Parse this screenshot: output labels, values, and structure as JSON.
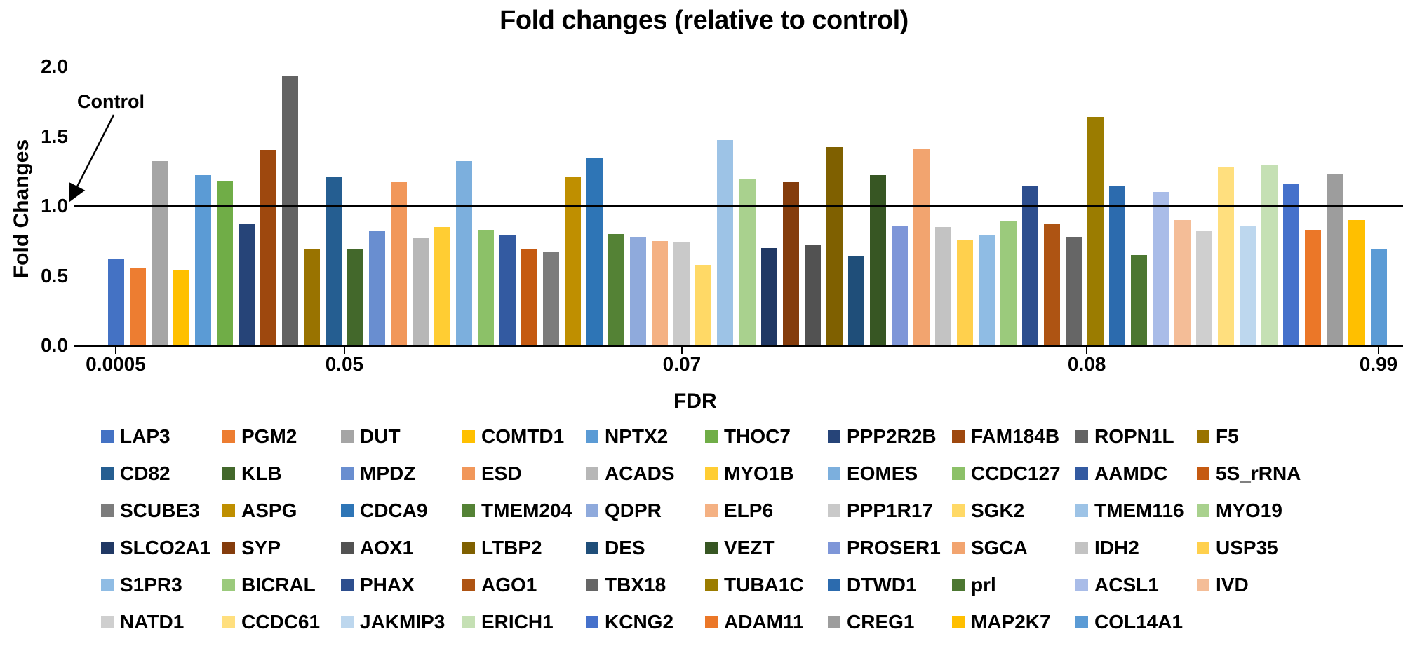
{
  "title": "Fold changes (relative to control)",
  "chart_data": {
    "type": "bar",
    "title": "Fold changes (relative to control)",
    "xlabel": "FDR",
    "ylabel": "Fold Changes",
    "ylim": [
      0.0,
      2.0
    ],
    "grid": false,
    "legend_position": "bottom",
    "legend_columns": 10,
    "control_label": "Control",
    "control_line_y": 1.0,
    "y_ticks": [
      "0.0",
      "0.5",
      "1.0",
      "1.5",
      "2.0"
    ],
    "x_ticks": [
      {
        "label": "0.0005",
        "bar_pos": 0
      },
      {
        "label": "0.05",
        "bar_pos": 10.5
      },
      {
        "label": "0.07",
        "bar_pos": 26
      },
      {
        "label": "0.08",
        "bar_pos": 44.6
      },
      {
        "label": "0.99",
        "bar_pos": 58
      }
    ],
    "series": [
      {
        "name": "LAP3",
        "value": 0.62,
        "color": "#4472C4"
      },
      {
        "name": "PGM2",
        "value": 0.56,
        "color": "#ED7D31"
      },
      {
        "name": "DUT",
        "value": 1.32,
        "color": "#A5A5A5"
      },
      {
        "name": "COMTD1",
        "value": 0.54,
        "color": "#FFC000"
      },
      {
        "name": "NPTX2",
        "value": 1.22,
        "color": "#5B9BD5"
      },
      {
        "name": "THOC7",
        "value": 1.18,
        "color": "#70AD47"
      },
      {
        "name": "PPP2R2B",
        "value": 0.87,
        "color": "#264478"
      },
      {
        "name": "FAM184B",
        "value": 1.4,
        "color": "#9E480E"
      },
      {
        "name": "ROPN1L",
        "value": 1.93,
        "color": "#636363"
      },
      {
        "name": "F5",
        "value": 0.69,
        "color": "#997300"
      },
      {
        "name": "CD82",
        "value": 1.21,
        "color": "#255E91"
      },
      {
        "name": "KLB",
        "value": 0.69,
        "color": "#43682B"
      },
      {
        "name": "MPDZ",
        "value": 0.82,
        "color": "#698ED0"
      },
      {
        "name": "ESD",
        "value": 1.17,
        "color": "#F1975A"
      },
      {
        "name": "ACADS",
        "value": 0.77,
        "color": "#B7B7B7"
      },
      {
        "name": "MYO1B",
        "value": 0.85,
        "color": "#FFCD33"
      },
      {
        "name": "EOMES",
        "value": 1.32,
        "color": "#7CAFDD"
      },
      {
        "name": "CCDC127",
        "value": 0.83,
        "color": "#8CC168"
      },
      {
        "name": "AAMDC",
        "value": 0.79,
        "color": "#335AA1"
      },
      {
        "name": "5S_rRNA",
        "value": 0.69,
        "color": "#C55A11"
      },
      {
        "name": "SCUBE3",
        "value": 0.67,
        "color": "#7C7C7C"
      },
      {
        "name": "ASPG",
        "value": 1.21,
        "color": "#BF8F00"
      },
      {
        "name": "CDCA9",
        "value": 1.34,
        "color": "#2E75B6"
      },
      {
        "name": "TMEM204",
        "value": 0.8,
        "color": "#548235"
      },
      {
        "name": "QDPR",
        "value": 0.78,
        "color": "#8FAADC"
      },
      {
        "name": "ELP6",
        "value": 0.75,
        "color": "#F4B183"
      },
      {
        "name": "PPP1R17",
        "value": 0.74,
        "color": "#C9C9C9"
      },
      {
        "name": "SGK2",
        "value": 0.58,
        "color": "#FFD966"
      },
      {
        "name": "TMEM116",
        "value": 1.47,
        "color": "#9DC3E6"
      },
      {
        "name": "MYO19",
        "value": 1.19,
        "color": "#A9D18E"
      },
      {
        "name": "SLCO2A1",
        "value": 0.7,
        "color": "#203864"
      },
      {
        "name": "SYP",
        "value": 1.17,
        "color": "#843C0C"
      },
      {
        "name": "AOX1",
        "value": 0.72,
        "color": "#525252"
      },
      {
        "name": "LTBP2",
        "value": 1.42,
        "color": "#7F6000"
      },
      {
        "name": "DES",
        "value": 0.64,
        "color": "#1F4E79"
      },
      {
        "name": "VEZT",
        "value": 1.22,
        "color": "#375623"
      },
      {
        "name": "PROSER1",
        "value": 0.86,
        "color": "#7E96D8"
      },
      {
        "name": "SGCA",
        "value": 1.41,
        "color": "#F2A46F"
      },
      {
        "name": "IDH2",
        "value": 0.85,
        "color": "#C3C3C3"
      },
      {
        "name": "USP35",
        "value": 0.76,
        "color": "#FFD04D"
      },
      {
        "name": "S1PR3",
        "value": 0.79,
        "color": "#8FBCE4"
      },
      {
        "name": "BICRAL",
        "value": 0.89,
        "color": "#9BCA7C"
      },
      {
        "name": "PHAX",
        "value": 1.14,
        "color": "#2D4E8E"
      },
      {
        "name": "AGO1",
        "value": 0.87,
        "color": "#AE5413"
      },
      {
        "name": "TBX18",
        "value": 0.78,
        "color": "#666666"
      },
      {
        "name": "TUBA1C",
        "value": 1.64,
        "color": "#9B7C00"
      },
      {
        "name": "DTWD1",
        "value": 1.14,
        "color": "#2C6BAE"
      },
      {
        "name": "prl",
        "value": 0.65,
        "color": "#4C7731"
      },
      {
        "name": "ACSL1",
        "value": 1.1,
        "color": "#A9BCE8"
      },
      {
        "name": "IVD",
        "value": 0.9,
        "color": "#F4BD97"
      },
      {
        "name": "NATD1",
        "value": 0.82,
        "color": "#CFCFCF"
      },
      {
        "name": "CCDC61",
        "value": 1.28,
        "color": "#FFDF7E"
      },
      {
        "name": "JAKMIP3",
        "value": 0.86,
        "color": "#BDD7EE"
      },
      {
        "name": "ERICH1",
        "value": 1.29,
        "color": "#C5E0B4"
      },
      {
        "name": "KCNG2",
        "value": 1.16,
        "color": "#4571CB"
      },
      {
        "name": "ADAM11",
        "value": 0.83,
        "color": "#EB7728"
      },
      {
        "name": "CREG1",
        "value": 1.23,
        "color": "#9D9D9D"
      },
      {
        "name": "MAP2K7",
        "value": 0.9,
        "color": "#FFBF00"
      },
      {
        "name": "COL14A1",
        "value": 0.69,
        "color": "#5B9BD5"
      }
    ]
  }
}
